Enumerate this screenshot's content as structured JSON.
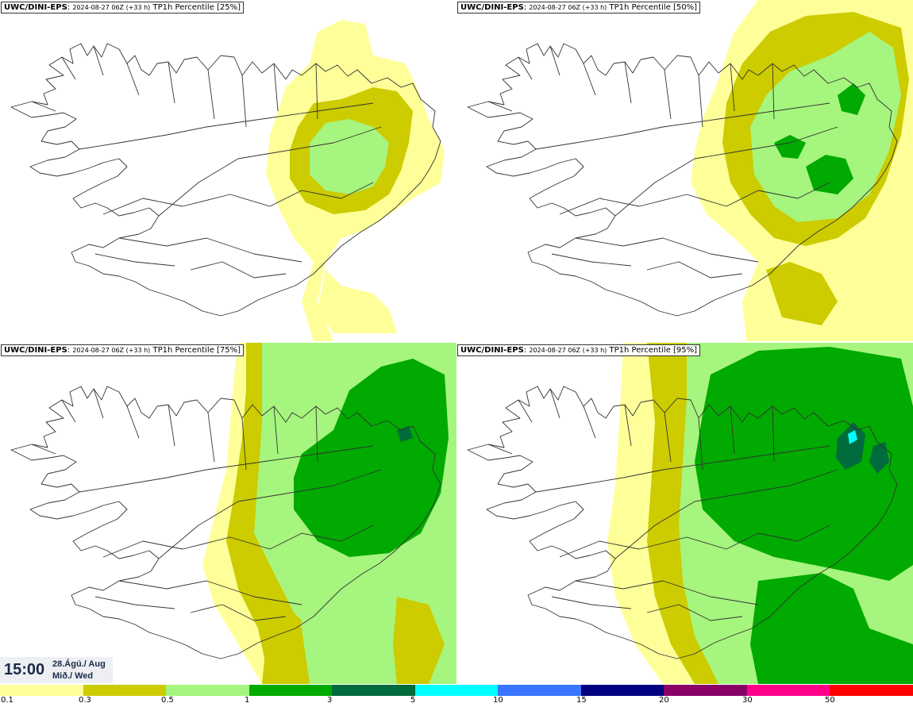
{
  "panels": [
    {
      "model": "UWC/DINI-EPS",
      "run": "2024-08-27 06Z (+33 h)",
      "field": "TP1h Percentile [25%]"
    },
    {
      "model": "UWC/DINI-EPS",
      "run": "2024-08-27 06Z (+33 h)",
      "field": "TP1h Percentile [50%]"
    },
    {
      "model": "UWC/DINI-EPS",
      "run": "2024-08-27 06Z (+33 h)",
      "field": "TP1h Percentile [75%]"
    },
    {
      "model": "UWC/DINI-EPS",
      "run": "2024-08-27 06Z (+33 h)",
      "field": "TP1h Percentile [95%]"
    }
  ],
  "valid_time": {
    "time": "15:00",
    "date_line1": "28.Ágú./ Aug",
    "date_line2": "Mið./ Wed"
  },
  "legend": {
    "ticks": [
      "0.1",
      "0.3",
      "0.5",
      "1",
      "3",
      "5",
      "10",
      "15",
      "20",
      "30",
      "50"
    ],
    "colors": [
      "#ffff99",
      "#cccc00",
      "#a6f57e",
      "#00aa00",
      "#006b3c",
      "#00ffff",
      "#3a75ff",
      "#000080",
      "#880066",
      "#ff0088",
      "#ff0000"
    ]
  },
  "colors": {
    "light_yellow": "#ffff99",
    "olive": "#cccc00",
    "light_green": "#a6f57e",
    "green": "#00aa00",
    "dark_green": "#006b3c",
    "cyan": "#00ffff",
    "outline": "#333333"
  }
}
